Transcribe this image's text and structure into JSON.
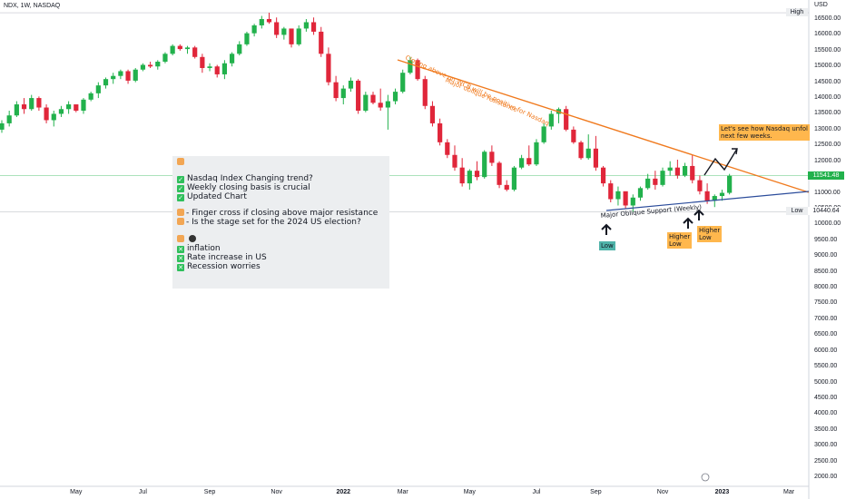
{
  "header": {
    "symbol_line": "NDX, 1W, NASDAQ"
  },
  "currency": "USD",
  "badges": {
    "high": "High",
    "low": "Low",
    "low_value": "10440.64",
    "last_value": "11541.48"
  },
  "colors": {
    "up": "#22b14c",
    "down": "#e0263a",
    "resistance": "#f07a1e",
    "support": "#2b4c9b",
    "panel_bg": "#eceef0"
  },
  "panel": {
    "l1": "Nasdaq Index Changing trend?",
    "l2": "Weekly closing basis is crucial",
    "l3": "Updated Chart",
    "l4": "-  Finger cross if closing above major resistance",
    "l5": "-  Is the stage set for the 2024 US election?",
    "l6": "inflation",
    "l7": "Rate increase in US",
    "l8": "Recession worries"
  },
  "annotations": {
    "resistance_label": "Major oblique resistance",
    "resistance_sub": "Closing above on WCB will be positive for Nasdaq",
    "support_label": "Major Oblique Support (Weekly)",
    "low_tag": "Low",
    "higher_low_1a": "Higher",
    "higher_low_1b": "Low",
    "higher_low_2a": "Higher",
    "higher_low_2b": "Low",
    "callout_1": "Let's see how Nasdaq unfol",
    "callout_2": "next few weeks."
  },
  "chart_data": {
    "type": "candlestick",
    "ylim": [
      1800,
      17200
    ],
    "y_ticks": [
      2000,
      2500,
      3000,
      3500,
      4000,
      4500,
      5000,
      5500,
      6000,
      6500,
      7000,
      7500,
      8000,
      8500,
      9000,
      9500,
      10000,
      10500,
      11000,
      11500,
      12000,
      12500,
      13000,
      13500,
      14000,
      14500,
      15000,
      15500,
      16000,
      16500
    ],
    "y_tick_labels": [
      "2000.00",
      "2500.00",
      "3000.00",
      "3500.00",
      "4000.00",
      "4500.00",
      "5000.00",
      "5500.00",
      "6000.00",
      "6500.00",
      "7000.00",
      "7500.00",
      "8000.00",
      "8500.00",
      "9000.00",
      "9500.00",
      "10000.00",
      "10500.00",
      "11000.00",
      "11500.00",
      "12000.00",
      "12500.00",
      "13000.00",
      "13500.00",
      "14000.00",
      "14500.00",
      "15000.00",
      "15500.00",
      "16000.00",
      "16500.00"
    ],
    "x_labels": [
      "May",
      "Jul",
      "Sep",
      "Nov",
      "2022",
      "Mar",
      "May",
      "Jul",
      "Sep",
      "Nov",
      "2023",
      "Mar"
    ],
    "x_label_week": [
      10,
      19,
      28,
      37,
      46,
      54,
      63,
      72,
      80,
      89,
      97,
      106
    ],
    "candles": [
      [
        13000,
        13300,
        12900,
        13200
      ],
      [
        13200,
        13600,
        13100,
        13450
      ],
      [
        13450,
        13900,
        13400,
        13800
      ],
      [
        13800,
        14000,
        13500,
        13650
      ],
      [
        13650,
        14100,
        13600,
        14000
      ],
      [
        14000,
        14050,
        13600,
        13700
      ],
      [
        13700,
        13800,
        13200,
        13300
      ],
      [
        13300,
        13600,
        13100,
        13500
      ],
      [
        13500,
        13750,
        13400,
        13650
      ],
      [
        13650,
        13900,
        13500,
        13800
      ],
      [
        13800,
        13750,
        13550,
        13600
      ],
      [
        13600,
        14000,
        13500,
        13950
      ],
      [
        13950,
        14200,
        13900,
        14150
      ],
      [
        14150,
        14500,
        14000,
        14400
      ],
      [
        14400,
        14650,
        14300,
        14600
      ],
      [
        14600,
        14800,
        14450,
        14700
      ],
      [
        14700,
        14900,
        14600,
        14850
      ],
      [
        14850,
        14900,
        14450,
        14550
      ],
      [
        14550,
        14950,
        14500,
        14900
      ],
      [
        14900,
        15100,
        14850,
        15050
      ],
      [
        15050,
        15150,
        14950,
        15000
      ],
      [
        15000,
        15200,
        14900,
        15150
      ],
      [
        15150,
        15450,
        15100,
        15400
      ],
      [
        15400,
        15700,
        15350,
        15650
      ],
      [
        15650,
        15700,
        15500,
        15550
      ],
      [
        15550,
        15650,
        15400,
        15600
      ],
      [
        15600,
        15650,
        15250,
        15300
      ],
      [
        15300,
        15400,
        14800,
        14950
      ],
      [
        14950,
        15100,
        14850,
        15000
      ],
      [
        15000,
        15050,
        14650,
        14750
      ],
      [
        14750,
        15200,
        14600,
        15100
      ],
      [
        15100,
        15450,
        15000,
        15400
      ],
      [
        15400,
        15800,
        15350,
        15700
      ],
      [
        15700,
        16100,
        15650,
        16050
      ],
      [
        16050,
        16350,
        15950,
        16300
      ],
      [
        16300,
        16600,
        16200,
        16500
      ],
      [
        16500,
        16700,
        16350,
        16400
      ],
      [
        16400,
        16550,
        15900,
        16000
      ],
      [
        16000,
        16250,
        15850,
        16200
      ],
      [
        16200,
        16100,
        15600,
        15700
      ],
      [
        15700,
        16300,
        15650,
        16200
      ],
      [
        16200,
        16500,
        16100,
        16400
      ],
      [
        16400,
        16550,
        16000,
        16100
      ],
      [
        16100,
        16250,
        15300,
        15400
      ],
      [
        15400,
        15600,
        14400,
        14500
      ],
      [
        14500,
        14700,
        13900,
        14000
      ],
      [
        14000,
        14400,
        13800,
        14300
      ],
      [
        14300,
        14650,
        14200,
        14550
      ],
      [
        14550,
        14600,
        13500,
        13600
      ],
      [
        13600,
        14200,
        13550,
        14100
      ],
      [
        14100,
        14200,
        13800,
        13850
      ],
      [
        13850,
        14300,
        13600,
        13700
      ],
      [
        13700,
        14100,
        13000,
        13900
      ],
      [
        13900,
        14300,
        13800,
        14200
      ],
      [
        14200,
        14900,
        14150,
        14800
      ],
      [
        14800,
        15300,
        14750,
        15200
      ],
      [
        15200,
        15250,
        14550,
        14600
      ],
      [
        14600,
        14700,
        13650,
        13750
      ],
      [
        13750,
        13900,
        13100,
        13200
      ],
      [
        13200,
        13350,
        12500,
        12600
      ],
      [
        12600,
        12700,
        12100,
        12200
      ],
      [
        12200,
        12500,
        11700,
        11800
      ],
      [
        11800,
        12100,
        11200,
        11300
      ],
      [
        11300,
        11750,
        11100,
        11700
      ],
      [
        11700,
        12000,
        11400,
        11500
      ],
      [
        11500,
        12350,
        11450,
        12300
      ],
      [
        12300,
        12500,
        11850,
        11950
      ],
      [
        11950,
        12000,
        11150,
        11250
      ],
      [
        11250,
        11400,
        11050,
        11100
      ],
      [
        11100,
        11850,
        11050,
        11800
      ],
      [
        11800,
        12200,
        11750,
        12100
      ],
      [
        12100,
        12500,
        11850,
        11900
      ],
      [
        11900,
        12700,
        11850,
        12600
      ],
      [
        12600,
        13200,
        12550,
        13100
      ],
      [
        13100,
        13600,
        13000,
        13500
      ],
      [
        13500,
        13700,
        13200,
        13650
      ],
      [
        13650,
        13750,
        12950,
        13000
      ],
      [
        13000,
        13100,
        12550,
        12600
      ],
      [
        12600,
        12650,
        12050,
        12100
      ],
      [
        12100,
        12850,
        12050,
        12400
      ],
      [
        12400,
        12800,
        11700,
        11800
      ],
      [
        11800,
        11850,
        11200,
        11300
      ],
      [
        11300,
        11400,
        10700,
        10800
      ],
      [
        10800,
        11200,
        10600,
        11050
      ],
      [
        11050,
        11000,
        10500,
        10600
      ],
      [
        10600,
        10950,
        10400,
        10850
      ],
      [
        10850,
        11200,
        10750,
        11150
      ],
      [
        11150,
        11600,
        11100,
        11450
      ],
      [
        11450,
        11700,
        11100,
        11250
      ],
      [
        11250,
        11800,
        11200,
        11700
      ],
      [
        11700,
        12000,
        11550,
        11800
      ],
      [
        11800,
        12050,
        11450,
        11550
      ],
      [
        11550,
        11950,
        11500,
        11850
      ],
      [
        11850,
        12200,
        11300,
        11400
      ],
      [
        11400,
        11550,
        10950,
        11050
      ],
      [
        11050,
        11300,
        10650,
        10750
      ],
      [
        10750,
        10950,
        10550,
        10900
      ],
      [
        10900,
        11100,
        10750,
        11000
      ],
      [
        11000,
        11600,
        10950,
        11541
      ]
    ]
  }
}
